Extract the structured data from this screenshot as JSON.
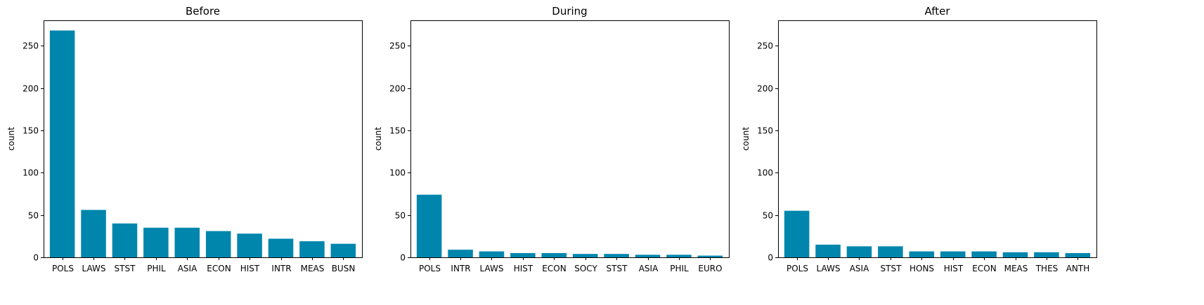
{
  "chart_data": [
    {
      "type": "bar",
      "title": "Before",
      "ylabel": "count",
      "xlabel": "",
      "ylim": [
        0,
        280
      ],
      "yticks": [
        0,
        50,
        100,
        150,
        200,
        250
      ],
      "categories": [
        "POLS",
        "LAWS",
        "STST",
        "PHIL",
        "ASIA",
        "ECON",
        "HIST",
        "INTR",
        "MEAS",
        "BUSN"
      ],
      "values": [
        268,
        56,
        40,
        35,
        35,
        31,
        28,
        22,
        19,
        16
      ],
      "color": "#0086ad"
    },
    {
      "type": "bar",
      "title": "During",
      "ylabel": "count",
      "xlabel": "",
      "ylim": [
        0,
        280
      ],
      "yticks": [
        0,
        50,
        100,
        150,
        200,
        250
      ],
      "categories": [
        "POLS",
        "INTR",
        "LAWS",
        "HIST",
        "ECON",
        "SOCY",
        "STST",
        "ASIA",
        "PHIL",
        "EURO"
      ],
      "values": [
        74,
        9,
        7,
        5,
        5,
        4,
        4,
        3,
        3,
        2
      ],
      "color": "#0086ad"
    },
    {
      "type": "bar",
      "title": "After",
      "ylabel": "count",
      "xlabel": "",
      "ylim": [
        0,
        280
      ],
      "yticks": [
        0,
        50,
        100,
        150,
        200,
        250
      ],
      "categories": [
        "POLS",
        "LAWS",
        "ASIA",
        "STST",
        "HONS",
        "HIST",
        "ECON",
        "MEAS",
        "THES",
        "ANTH"
      ],
      "values": [
        55,
        15,
        13,
        13,
        7,
        7,
        7,
        6,
        6,
        5
      ],
      "color": "#0086ad"
    }
  ]
}
